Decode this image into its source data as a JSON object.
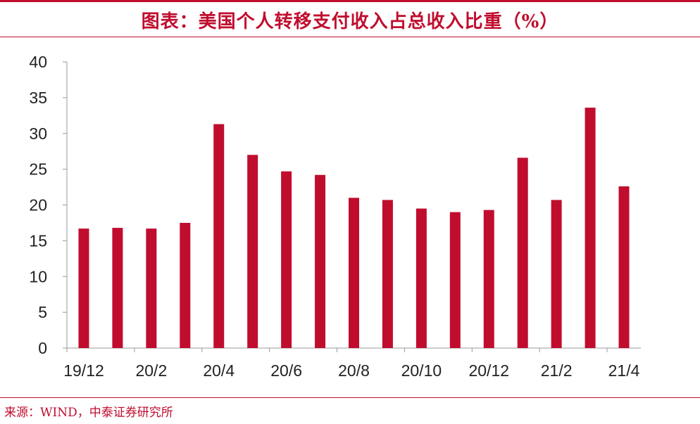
{
  "header": {
    "title": "图表：美国个人转移支付收入占总收入比重（%）"
  },
  "footer": {
    "source": "来源：WIND，中泰证券研究所"
  },
  "colors": {
    "accent": "#c00d2e",
    "bar": "#c00d2e",
    "axis": "#999999"
  },
  "chart_data": {
    "type": "bar",
    "categories": [
      "19/12",
      "20/1",
      "20/2",
      "20/3",
      "20/4",
      "20/5",
      "20/6",
      "20/7",
      "20/8",
      "20/9",
      "20/10",
      "20/11",
      "20/12",
      "21/1",
      "21/2",
      "21/3",
      "21/4"
    ],
    "visible_x_tick_labels": [
      "19/12",
      "20/2",
      "20/4",
      "20/6",
      "20/8",
      "20/10",
      "20/12",
      "21/2",
      "21/4"
    ],
    "values": [
      16.7,
      16.8,
      16.7,
      17.5,
      31.3,
      27.0,
      24.7,
      24.2,
      21.0,
      20.7,
      19.5,
      19.0,
      19.3,
      26.6,
      20.7,
      33.6,
      22.6
    ],
    "title": "图表：美国个人转移支付收入占总收入比重（%）",
    "xlabel": "",
    "ylabel": "",
    "ylim": [
      0,
      40
    ],
    "yticks": [
      0,
      5,
      10,
      15,
      20,
      25,
      30,
      35,
      40
    ],
    "grid": false,
    "legend": "none"
  }
}
